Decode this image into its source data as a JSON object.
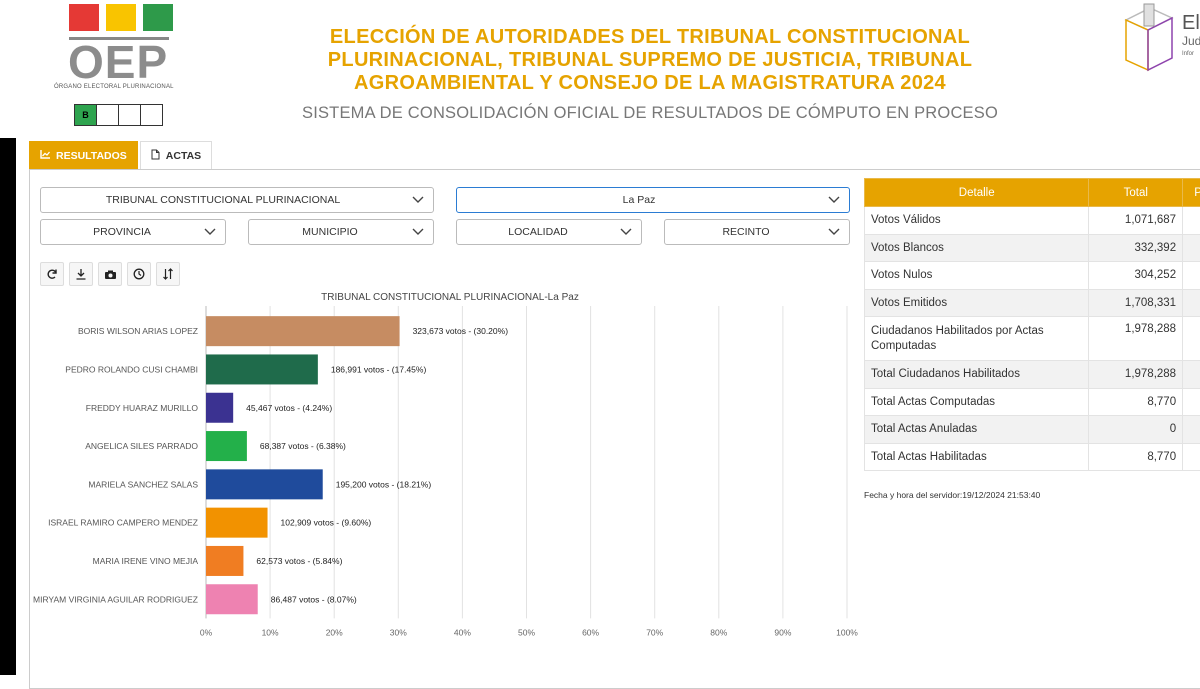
{
  "header": {
    "logo_text": "OEP",
    "logo_subtitle": "ÓRGANO ELECTORAL PLURINACIONAL",
    "logo_colors": [
      "#e53935",
      "#f9c400",
      "#2e9a4a"
    ],
    "mini_boxes": [
      "B",
      "",
      "",
      ""
    ],
    "title_line1": "ELECCIÓN DE AUTORIDADES DEL TRIBUNAL CONSTITUCIONAL",
    "title_line2": "PLURINACIONAL, TRIBUNAL SUPREMO DE JUSTICIA, TRIBUNAL",
    "title_line3": "AGROAMBIENTAL Y CONSEJO DE LA MAGISTRATURA 2024",
    "subtitle": "SISTEMA DE CONSOLIDACIÓN OFICIAL DE RESULTADOS DE CÓMPUTO EN PROCESO",
    "brand_right_1": "Ele",
    "brand_right_2": "Jud",
    "brand_right_3": "Infor"
  },
  "tabs": [
    {
      "label": "RESULTADOS",
      "icon": "chart-icon",
      "active": true
    },
    {
      "label": "ACTAS",
      "icon": "document-icon",
      "active": false
    }
  ],
  "filters": {
    "tribunal": "TRIBUNAL CONSTITUCIONAL PLURINACIONAL",
    "departamento": "La Paz",
    "provincia": "PROVINCIA",
    "municipio": "MUNICIPIO",
    "localidad": "LOCALIDAD",
    "recinto": "RECINTO"
  },
  "toolbar": [
    "refresh-icon",
    "download-icon",
    "camera-icon",
    "clock-icon",
    "sort-icon"
  ],
  "chart_data": {
    "type": "bar",
    "orientation": "horizontal",
    "title": "TRIBUNAL CONSTITUCIONAL PLURINACIONAL-La Paz",
    "categories": [
      "BORIS WILSON ARIAS LOPEZ",
      "PEDRO ROLANDO CUSI CHAMBI",
      "FREDDY HUARAZ MURILLO",
      "ANGELICA SILES PARRADO",
      "MARIELA SANCHEZ SALAS",
      "ISRAEL RAMIRO CAMPERO MENDEZ",
      "MARIA IRENE VINO MEJIA",
      "MIRYAM VIRGINIA AGUILAR RODRIGUEZ"
    ],
    "values": [
      30.2,
      17.45,
      4.24,
      6.38,
      18.21,
      9.6,
      5.84,
      8.07
    ],
    "labels": [
      "323,673 votos - (30.20%)",
      "186,991 votos - (17.45%)",
      "45,467 votos - (4.24%)",
      "68,387 votos - (6.38%)",
      "195,200 votos - (18.21%)",
      "102,909 votos - (9.60%)",
      "62,573 votos - (5.84%)",
      "86,487 votos - (8.07%)"
    ],
    "colors": [
      "#c68c62",
      "#1f6b4b",
      "#3b3291",
      "#23b04a",
      "#1f4b9c",
      "#f29200",
      "#f07d22",
      "#ee82b1"
    ],
    "xlim": [
      0,
      100
    ],
    "xticks": [
      "0%",
      "10%",
      "20%",
      "30%",
      "40%",
      "50%",
      "60%",
      "70%",
      "80%",
      "90%",
      "100%"
    ],
    "grid": true
  },
  "results_table": {
    "headers": [
      "Detalle",
      "Total",
      "P"
    ],
    "rows": [
      {
        "label": "Votos Válidos",
        "total": "1,071,687"
      },
      {
        "label": "Votos Blancos",
        "total": "332,392"
      },
      {
        "label": "Votos Nulos",
        "total": "304,252"
      },
      {
        "label": "Votos Emitidos",
        "total": "1,708,331"
      },
      {
        "label": "Ciudadanos Habilitados por Actas Computadas",
        "total": "1,978,288"
      },
      {
        "label": "Total Ciudadanos Habilitados",
        "total": "1,978,288"
      },
      {
        "label": "Total Actas Computadas",
        "total": "8,770"
      },
      {
        "label": "Total Actas Anuladas",
        "total": "0"
      },
      {
        "label": "Total Actas Habilitadas",
        "total": "8,770"
      }
    ]
  },
  "server_time": "Fecha y hora del servidor:19/12/2024 21:53:40"
}
